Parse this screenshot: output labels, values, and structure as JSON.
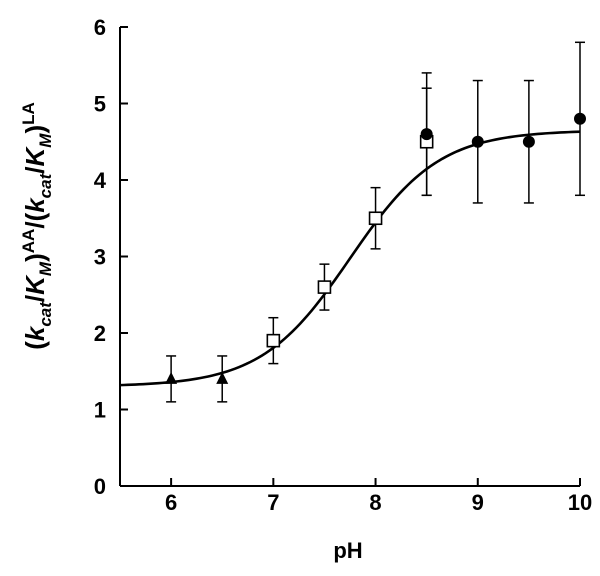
{
  "chart_data": {
    "type": "scatter",
    "xlabel": "pH",
    "ylabel_parts": {
      "open1": "(",
      "k1": "k",
      "cat1": "cat",
      "slash1": "/",
      "K1": "K",
      "M1": "M",
      "close1": ")",
      "sup1": "AA",
      "sep": "/(",
      "k2": "k",
      "cat2": "cat",
      "slash2": "/",
      "K2": "K",
      "M2": "M",
      "close2": ")",
      "sup2": "LA"
    },
    "xlim": [
      5.5,
      10
    ],
    "ylim": [
      0,
      6
    ],
    "xticks": [
      "6",
      "7",
      "8",
      "9",
      "10"
    ],
    "yticks": [
      "0",
      "1",
      "2",
      "3",
      "4",
      "5",
      "6"
    ],
    "grid": false,
    "series": [
      {
        "marker": "triangle",
        "points": [
          {
            "x": 6.0,
            "y": 1.4,
            "err": 0.3
          },
          {
            "x": 6.5,
            "y": 1.4,
            "err": 0.3
          }
        ]
      },
      {
        "marker": "open-square",
        "points": [
          {
            "x": 7.0,
            "y": 1.9,
            "err": 0.3
          },
          {
            "x": 7.5,
            "y": 2.6,
            "err": 0.3
          },
          {
            "x": 8.0,
            "y": 3.5,
            "err": 0.4
          },
          {
            "x": 8.5,
            "y": 4.5,
            "err": 0.7
          }
        ]
      },
      {
        "marker": "filled-circle",
        "points": [
          {
            "x": 8.5,
            "y": 4.6,
            "err": 0.8
          },
          {
            "x": 9.0,
            "y": 4.5,
            "err": 0.8
          },
          {
            "x": 9.5,
            "y": 4.5,
            "err": 0.8
          },
          {
            "x": 10.0,
            "y": 4.8,
            "err": 1.0
          }
        ]
      }
    ],
    "fit_curve": {
      "type": "sigmoid",
      "low": 1.3,
      "high": 4.65,
      "pKa": 7.75,
      "x_range": [
        5.5,
        10
      ]
    }
  }
}
